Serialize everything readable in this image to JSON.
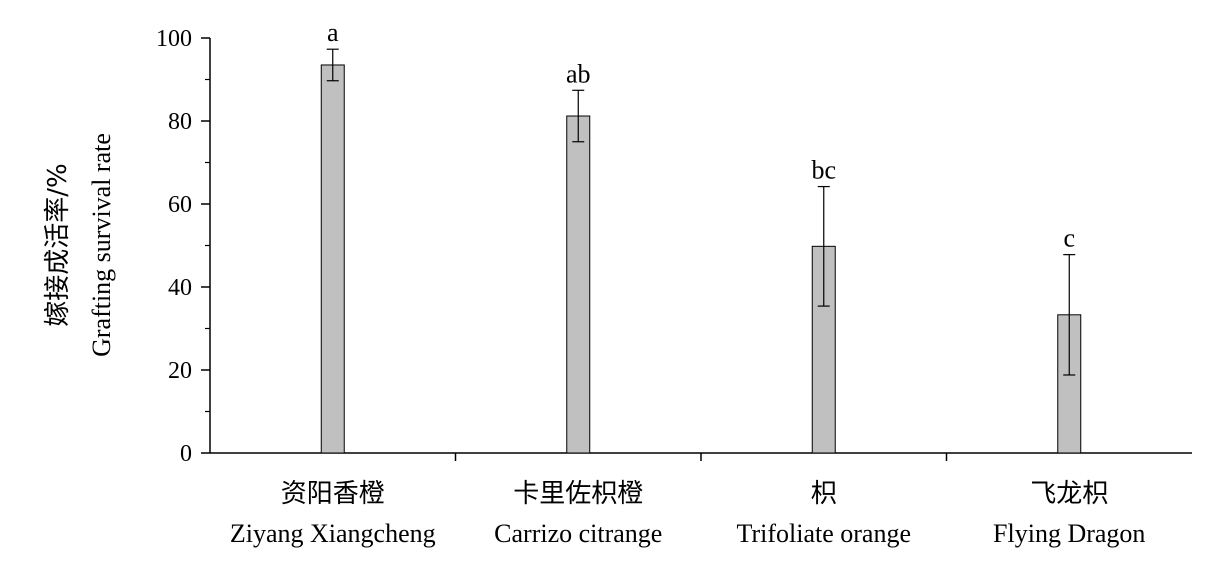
{
  "chart_data": {
    "type": "bar",
    "categories": [
      {
        "zh": "资阳香橙",
        "en": "Ziyang Xiangcheng"
      },
      {
        "zh": "卡里佐枳橙",
        "en": "Carrizo citrange"
      },
      {
        "zh": "枳",
        "en": "Trifoliate orange"
      },
      {
        "zh": "飞龙枳",
        "en": "Flying Dragon"
      }
    ],
    "values": [
      93.5,
      81.2,
      49.8,
      33.3
    ],
    "errors": [
      3.8,
      6.2,
      14.4,
      14.5
    ],
    "significance": [
      "a",
      "ab",
      "bc",
      "c"
    ],
    "ylabel_zh": "嫁接成活率/%",
    "ylabel_en": "Grafting survival rate",
    "ylim": [
      0,
      100
    ],
    "yticks": [
      0,
      20,
      40,
      60,
      80,
      100
    ],
    "bar_color": "#c0c0c0",
    "grid": false,
    "legend": "none"
  }
}
